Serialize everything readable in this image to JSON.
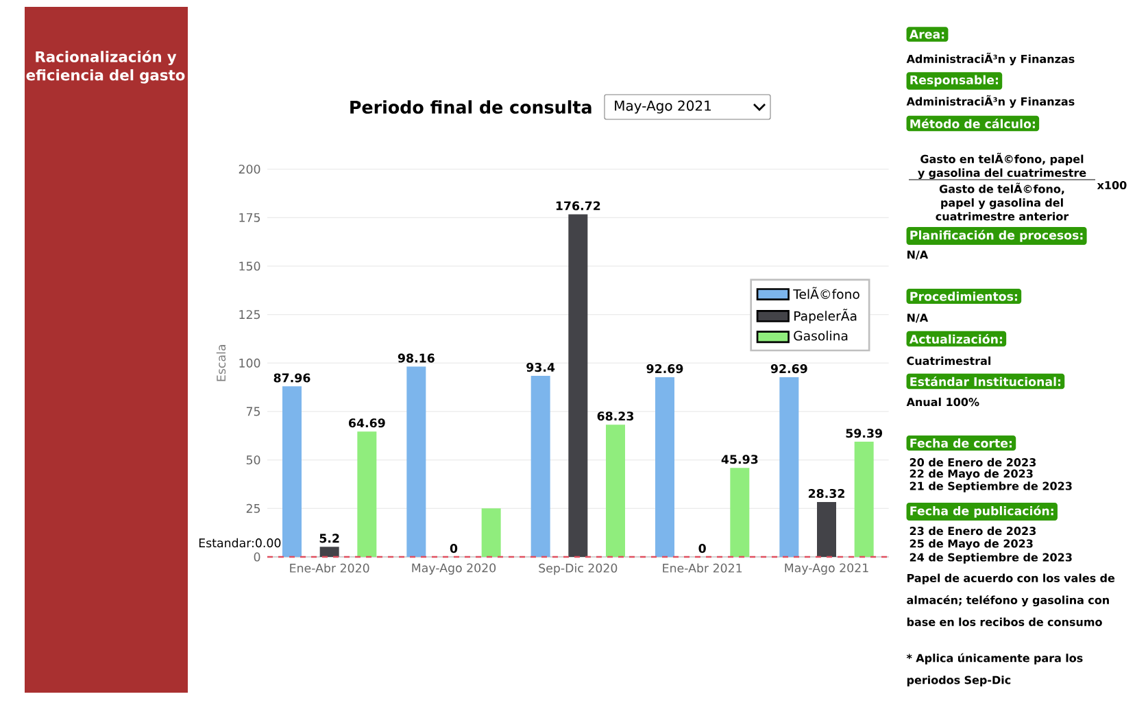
{
  "chart_data": {
    "type": "bar",
    "title": "Racionalización y eficiencia del gasto",
    "subtitle": "Periodo final de consulta",
    "ylabel": "Escala",
    "categories": [
      "Ene-Abr 2020",
      "May-Ago 2020",
      "Sep-Dic 2020",
      "Ene-Abr 2021",
      "May-Ago 2021"
    ],
    "series": [
      {
        "name": "TelÃ©fono",
        "color": "#7cb5ec",
        "values": [
          87.96,
          98.16,
          93.4,
          92.69,
          92.69
        ],
        "value_labels": [
          "87.96",
          "98.16",
          "93.4",
          "92.69",
          "92.69"
        ]
      },
      {
        "name": "PapelerÃa",
        "color": "#434348",
        "values": [
          5.2,
          0,
          176.72,
          0,
          28.32
        ],
        "value_labels": [
          "5.2",
          "0",
          "176.72",
          "0",
          "28.32"
        ]
      },
      {
        "name": "Gasolina",
        "color": "#90ed7d",
        "values": [
          64.69,
          25,
          68.23,
          45.93,
          59.39
        ],
        "value_labels": [
          "64.69",
          null,
          "68.23",
          "45.93",
          "59.39"
        ]
      }
    ],
    "ylim": [
      0,
      200
    ],
    "yticks": [
      0,
      25,
      50,
      75,
      100,
      125,
      150,
      175,
      200
    ],
    "grid": "y",
    "legend": "right",
    "ref_lines": [
      {
        "axis": "y",
        "value": 0,
        "label": "Estandar:0.00",
        "color": "#e05060",
        "line_style": "dashed"
      }
    ],
    "annotations": [
      "May-Ago 2021",
      "Area:",
      "AdministraciÃ³n y Finanzas",
      "Responsable:",
      "AdministraciÃ³n y Finanzas",
      "Método de cálculo:",
      "Gasto en telÃ©fono, papel y gasolina del cuatrimestre",
      "Gasto de telÃ©fono, papel y gasolina del cuatrimestre anterior",
      "x100",
      "Planificación de procesos:",
      "N/A",
      "Procedimientos:",
      "N/A",
      "Actualización:",
      "Cuatrimestral",
      "Estándar Institucional:",
      "Anual 100%",
      "Fecha de corte:",
      "20 de Enero de 2023",
      "22 de Mayo de 2023",
      "21 de Septiembre de 2023",
      "Fecha de publicación:",
      "23 de Enero de 2023",
      "25 de Mayo de 2023",
      "24 de Septiembre de 2023",
      "Papel de acuerdo con los vales de almacén; teléfono y gasolina con base en los recibos de consumo",
      "* Aplica únicamente para los periodos Sep-Dic"
    ]
  }
}
